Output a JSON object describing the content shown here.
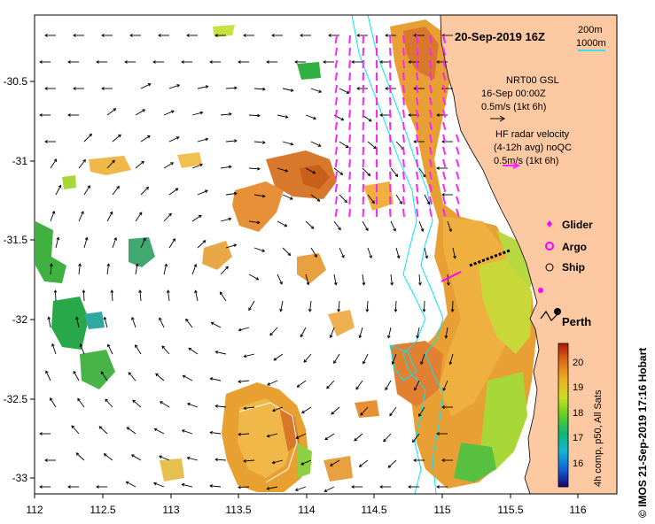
{
  "map": {
    "title": "20-Sep-2019 16Z",
    "depth_contours": [
      "200m",
      "1000m"
    ],
    "x_ticks": [
      "112",
      "112.5",
      "113",
      "113.5",
      "114",
      "114.5",
      "115",
      "115.5",
      "116"
    ],
    "y_ticks": [
      "-30.5",
      "-31",
      "-31.5",
      "-32",
      "-32.5",
      "-33"
    ],
    "current_legend": {
      "gsl_title": "NRT00 GSL",
      "gsl_date": "16-Sep 00:00Z",
      "gsl_scale": "0.5m/s (1kt 6h)",
      "hf_title": "HF radar velocity",
      "hf_sub": "(4-12h avg) noQC",
      "hf_scale": "0.5m/s (1kt 6h)"
    },
    "platforms": [
      {
        "symbol": "diamond",
        "label": "Glider",
        "color": "#ff00ff"
      },
      {
        "symbol": "ring",
        "label": "Argo",
        "color": "#ff00ff"
      },
      {
        "symbol": "circle",
        "label": "Ship",
        "color": "#000000"
      }
    ],
    "city": "Perth",
    "colorbar": {
      "ticks": [
        "20",
        "19",
        "18",
        "17",
        "16"
      ],
      "caption": "4h comp, p50, All Sats"
    },
    "credit": "© IMOS 21-Sep-2019 17:16 Hobart",
    "colors": {
      "land": "#fcc9a2",
      "contour": "#00e5ff",
      "glider": "#ff00ff",
      "hf_vector": "#ff22ff"
    }
  }
}
